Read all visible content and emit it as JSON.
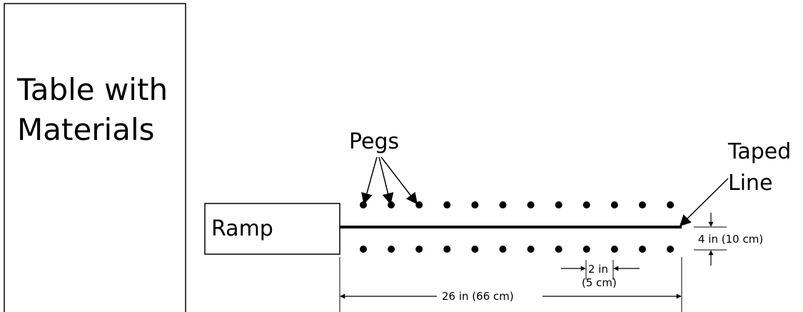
{
  "table": {
    "line1": "Table with",
    "line2": "Materials"
  },
  "ramp": {
    "label": "Ramp"
  },
  "pegs": {
    "label": "Pegs",
    "pegs_per_row": 12
  },
  "taped_line": {
    "line1": "Taped",
    "line2": "Line"
  },
  "dimensions": {
    "row_gap": "4 in (10 cm)",
    "peg_spacing_in": "2 in",
    "peg_spacing_cm": "(5 cm)",
    "line_length": "26 in (66 cm)"
  }
}
